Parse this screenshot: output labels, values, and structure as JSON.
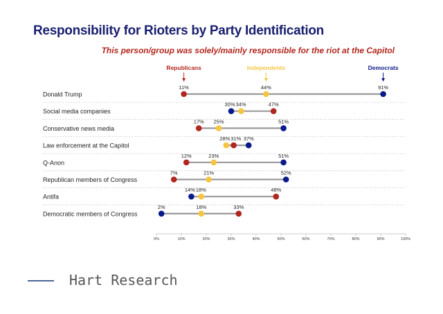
{
  "chart_data": {
    "type": "dot-range",
    "title": "Responsibility for Rioters by Party Identification",
    "subtitle": "This person/group was solely/mainly responsible for the riot at the Capitol",
    "xlim": [
      0,
      100
    ],
    "x_ticks": [
      "0%",
      "10%",
      "20%",
      "30%",
      "40%",
      "50%",
      "60%",
      "70%",
      "80%",
      "90%",
      "100%"
    ],
    "grid": false,
    "legend_placement": "top",
    "categories": [
      "Donald Trump",
      "Social media companies",
      "Conservative news media",
      "Law enforcement at the Capitol",
      "Q-Anon",
      "Republican members of Congress",
      "Antifa",
      "Democratic members of Congress"
    ],
    "series": [
      {
        "name": "Republicans",
        "color": "#b3261e",
        "values": [
          11,
          47,
          17,
          31,
          12,
          7,
          48,
          33
        ]
      },
      {
        "name": "Independents",
        "color": "#f5c542",
        "values": [
          44,
          34,
          25,
          28,
          23,
          21,
          18,
          18
        ]
      },
      {
        "name": "Democrats",
        "color": "#0b1a8a",
        "values": [
          91,
          30,
          51,
          37,
          51,
          52,
          14,
          2
        ]
      }
    ]
  },
  "footer": {
    "brand": "Hart Research"
  }
}
